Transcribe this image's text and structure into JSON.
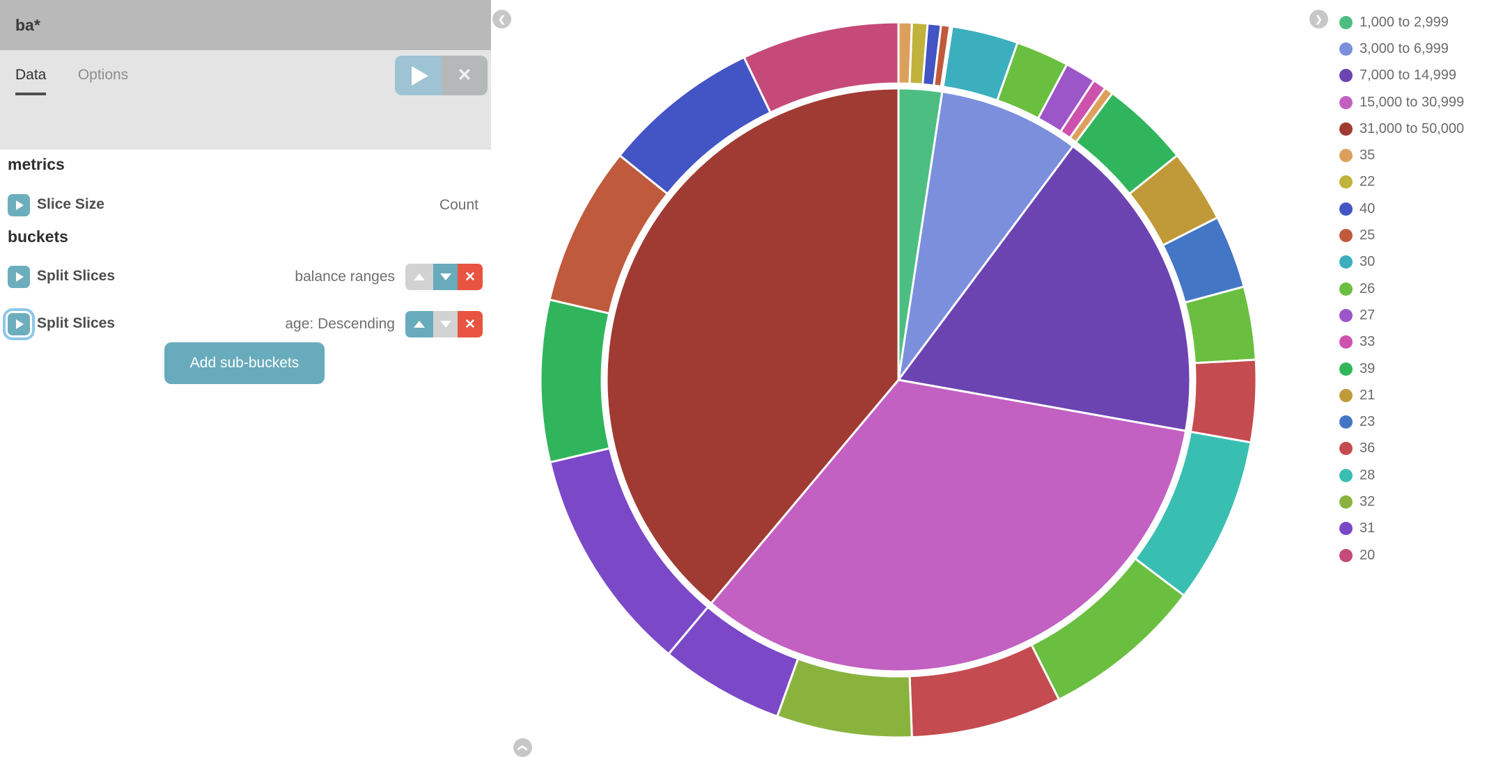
{
  "sidebar": {
    "title": "ba*",
    "tabs": [
      {
        "label": "Data",
        "active": true
      },
      {
        "label": "Options",
        "active": false
      }
    ],
    "metrics_header": "metrics",
    "metric": {
      "label": "Slice Size",
      "value": "Count"
    },
    "buckets_header": "buckets",
    "buckets": [
      {
        "label": "Split Slices",
        "value": "balance ranges"
      },
      {
        "label": "Split Slices",
        "value": "age: Descending"
      }
    ],
    "add_button_label": "Add sub-buckets"
  },
  "chart_data": {
    "type": "pie",
    "metric": "Count",
    "legend_position": "right",
    "rings": [
      {
        "name": "balance ranges",
        "slices": [
          {
            "label": "1,000 to 2,999",
            "value": 24
          },
          {
            "label": "3,000 to 6,999",
            "value": 78
          },
          {
            "label": "7,000 to 14,999",
            "value": 176
          },
          {
            "label": "15,000 to 30,999",
            "value": 333
          },
          {
            "label": "31,000 to 50,000",
            "value": 389
          }
        ]
      },
      {
        "name": "age",
        "slices": [
          {
            "label": "35",
            "value": 6
          },
          {
            "label": "22",
            "value": 7
          },
          {
            "label": "40",
            "value": 6
          },
          {
            "label": "25",
            "value": 4
          },
          {
            "label": "30",
            "value": 1
          },
          {
            "label": "30",
            "value": 30
          },
          {
            "label": "26",
            "value": 24
          },
          {
            "label": "27",
            "value": 14
          },
          {
            "label": "33",
            "value": 6
          },
          {
            "label": "35",
            "value": 4
          },
          {
            "label": "39",
            "value": 40
          },
          {
            "label": "21",
            "value": 33
          },
          {
            "label": "23",
            "value": 33
          },
          {
            "label": "26",
            "value": 33
          },
          {
            "label": "36",
            "value": 37
          },
          {
            "label": "28",
            "value": 75
          },
          {
            "label": "26",
            "value": 73
          },
          {
            "label": "36",
            "value": 68
          },
          {
            "label": "32",
            "value": 61
          },
          {
            "label": "31",
            "value": 56
          },
          {
            "label": "31",
            "value": 102
          },
          {
            "label": "39",
            "value": 73
          },
          {
            "label": "25",
            "value": 72
          },
          {
            "label": "40",
            "value": 71
          },
          {
            "label": "20",
            "value": 71
          }
        ]
      }
    ],
    "colors": {
      "1,000 to 2,999": "#4dbe82",
      "3,000 to 6,999": "#7b8fdd",
      "7,000 to 14,999": "#6b44b1",
      "15,000 to 30,999": "#c261c2",
      "31,000 to 50,000": "#a03b33",
      "35": "#dda05c",
      "22": "#c0b23b",
      "40": "#4355c4",
      "25": "#c05a3d",
      "30": "#3cafbf",
      "26": "#6abf40",
      "27": "#9d56c8",
      "33": "#cc52ae",
      "39": "#30b55c",
      "21": "#c09a38",
      "23": "#4476c6",
      "36": "#c44b50",
      "28": "#39bfb2",
      "32": "#8ab33e",
      "31": "#7b48c8",
      "20": "#c54a7a"
    }
  },
  "legend": {
    "items": [
      "1,000 to 2,999",
      "3,000 to 6,999",
      "7,000 to 14,999",
      "15,000 to 30,999",
      "31,000 to 50,000",
      "35",
      "22",
      "40",
      "25",
      "30",
      "26",
      "27",
      "33",
      "39",
      "21",
      "23",
      "36",
      "28",
      "32",
      "31",
      "20"
    ]
  },
  "nav": {
    "left": "❮",
    "right": "❯",
    "up": "❮"
  }
}
